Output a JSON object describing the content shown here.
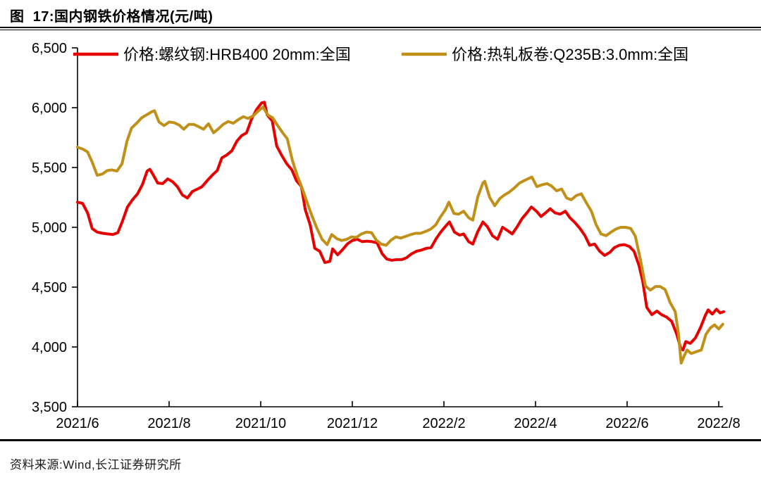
{
  "title": "图  17:国内钢铁价格情况(元/吨)",
  "source": "资料来源:Wind,长江证券研究所",
  "colors": {
    "axis": "#000000",
    "rebar": "#e60000",
    "hrc": "#c09018"
  },
  "chart_data": {
    "type": "line",
    "title": "国内钢铁价格情况",
    "unit": "元/吨",
    "grid": false,
    "legend_position": "top-inside",
    "x_axis": {
      "unit": "months since 2021/6",
      "range": [
        0,
        14.15
      ],
      "tick_positions": [
        0,
        2,
        4,
        6,
        8,
        10,
        12,
        14
      ],
      "tick_labels": [
        "2021/6",
        "2021/8",
        "2021/10",
        "2021/12",
        "2022/2",
        "2022/4",
        "2022/6",
        "2022/8"
      ]
    },
    "y_axis": {
      "range": [
        3500,
        6500
      ],
      "tick_values": [
        6500,
        6000,
        5500,
        5000,
        4500,
        4000,
        3500
      ],
      "tick_labels": [
        "6,500",
        "6,000",
        "5,500",
        "5,000",
        "4,500",
        "4,000",
        "3,500"
      ]
    },
    "series": [
      {
        "name": "价格:螺纹钢:HRB400 20mm:全国",
        "color": "#e60000",
        "points": [
          [
            0,
            5210
          ],
          [
            0.11,
            5200
          ],
          [
            0.22,
            5120
          ],
          [
            0.32,
            4990
          ],
          [
            0.43,
            4960
          ],
          [
            0.55,
            4950
          ],
          [
            0.66,
            4945
          ],
          [
            0.77,
            4940
          ],
          [
            0.88,
            4955
          ],
          [
            0.98,
            5050
          ],
          [
            1.09,
            5170
          ],
          [
            1.2,
            5230
          ],
          [
            1.31,
            5280
          ],
          [
            1.42,
            5360
          ],
          [
            1.52,
            5470
          ],
          [
            1.58,
            5485
          ],
          [
            1.65,
            5440
          ],
          [
            1.75,
            5370
          ],
          [
            1.86,
            5365
          ],
          [
            1.97,
            5405
          ],
          [
            2.08,
            5380
          ],
          [
            2.18,
            5340
          ],
          [
            2.29,
            5270
          ],
          [
            2.4,
            5245
          ],
          [
            2.51,
            5300
          ],
          [
            2.62,
            5320
          ],
          [
            2.72,
            5340
          ],
          [
            2.83,
            5390
          ],
          [
            2.94,
            5435
          ],
          [
            3.05,
            5475
          ],
          [
            3.15,
            5580
          ],
          [
            3.26,
            5605
          ],
          [
            3.37,
            5640
          ],
          [
            3.48,
            5720
          ],
          [
            3.58,
            5765
          ],
          [
            3.69,
            5790
          ],
          [
            3.8,
            5905
          ],
          [
            3.91,
            5985
          ],
          [
            4.02,
            6040
          ],
          [
            4.08,
            6045
          ],
          [
            4.14,
            5940
          ],
          [
            4.25,
            5890
          ],
          [
            4.35,
            5680
          ],
          [
            4.46,
            5600
          ],
          [
            4.57,
            5530
          ],
          [
            4.68,
            5480
          ],
          [
            4.78,
            5390
          ],
          [
            4.89,
            5340
          ],
          [
            4.97,
            5150
          ],
          [
            5.08,
            5020
          ],
          [
            5.18,
            4825
          ],
          [
            5.29,
            4800
          ],
          [
            5.4,
            4705
          ],
          [
            5.51,
            4715
          ],
          [
            5.57,
            4820
          ],
          [
            5.68,
            4770
          ],
          [
            5.78,
            4810
          ],
          [
            5.89,
            4860
          ],
          [
            6,
            4890
          ],
          [
            6.11,
            4900
          ],
          [
            6.22,
            4880
          ],
          [
            6.32,
            4885
          ],
          [
            6.43,
            4880
          ],
          [
            6.54,
            4870
          ],
          [
            6.65,
            4780
          ],
          [
            6.75,
            4735
          ],
          [
            6.86,
            4725
          ],
          [
            6.97,
            4730
          ],
          [
            7.08,
            4730
          ],
          [
            7.18,
            4745
          ],
          [
            7.28,
            4775
          ],
          [
            7.4,
            4800
          ],
          [
            7.51,
            4810
          ],
          [
            7.62,
            4825
          ],
          [
            7.72,
            4830
          ],
          [
            7.83,
            4905
          ],
          [
            7.94,
            4965
          ],
          [
            8.05,
            5015
          ],
          [
            8.12,
            5045
          ],
          [
            8.23,
            4960
          ],
          [
            8.34,
            4935
          ],
          [
            8.43,
            4945
          ],
          [
            8.54,
            4880
          ],
          [
            8.63,
            4860
          ],
          [
            8.74,
            4965
          ],
          [
            8.85,
            5045
          ],
          [
            8.95,
            5005
          ],
          [
            9.06,
            4930
          ],
          [
            9.17,
            4900
          ],
          [
            9.28,
            5000
          ],
          [
            9.38,
            4975
          ],
          [
            9.49,
            4945
          ],
          [
            9.6,
            5005
          ],
          [
            9.71,
            5075
          ],
          [
            9.82,
            5125
          ],
          [
            9.91,
            5170
          ],
          [
            10.02,
            5135
          ],
          [
            10.12,
            5090
          ],
          [
            10.23,
            5125
          ],
          [
            10.32,
            5155
          ],
          [
            10.43,
            5120
          ],
          [
            10.54,
            5110
          ],
          [
            10.65,
            5135
          ],
          [
            10.75,
            5080
          ],
          [
            10.86,
            5040
          ],
          [
            10.97,
            4990
          ],
          [
            11.08,
            4930
          ],
          [
            11.18,
            4850
          ],
          [
            11.29,
            4860
          ],
          [
            11.4,
            4800
          ],
          [
            11.51,
            4765
          ],
          [
            11.62,
            4790
          ],
          [
            11.72,
            4830
          ],
          [
            11.83,
            4850
          ],
          [
            11.94,
            4855
          ],
          [
            12.05,
            4840
          ],
          [
            12.15,
            4800
          ],
          [
            12.26,
            4680
          ],
          [
            12.34,
            4550
          ],
          [
            12.43,
            4330
          ],
          [
            12.54,
            4270
          ],
          [
            12.65,
            4300
          ],
          [
            12.75,
            4270
          ],
          [
            12.86,
            4250
          ],
          [
            12.97,
            4215
          ],
          [
            13.08,
            4110
          ],
          [
            13.17,
            3990
          ],
          [
            13.22,
            3975
          ],
          [
            13.28,
            4045
          ],
          [
            13.38,
            4030
          ],
          [
            13.49,
            4075
          ],
          [
            13.6,
            4160
          ],
          [
            13.71,
            4265
          ],
          [
            13.77,
            4310
          ],
          [
            13.86,
            4275
          ],
          [
            13.95,
            4315
          ],
          [
            14.03,
            4285
          ],
          [
            14.11,
            4295
          ]
        ]
      },
      {
        "name": "价格:热轧板卷:Q235B:3.0mm:全国",
        "color": "#c09018",
        "points": [
          [
            0,
            5670
          ],
          [
            0.11,
            5655
          ],
          [
            0.22,
            5630
          ],
          [
            0.32,
            5545
          ],
          [
            0.43,
            5435
          ],
          [
            0.54,
            5445
          ],
          [
            0.65,
            5475
          ],
          [
            0.75,
            5480
          ],
          [
            0.86,
            5470
          ],
          [
            0.97,
            5530
          ],
          [
            1.08,
            5720
          ],
          [
            1.18,
            5830
          ],
          [
            1.29,
            5870
          ],
          [
            1.4,
            5915
          ],
          [
            1.51,
            5940
          ],
          [
            1.62,
            5965
          ],
          [
            1.68,
            5975
          ],
          [
            1.78,
            5880
          ],
          [
            1.89,
            5850
          ],
          [
            2,
            5880
          ],
          [
            2.11,
            5875
          ],
          [
            2.22,
            5855
          ],
          [
            2.32,
            5820
          ],
          [
            2.43,
            5860
          ],
          [
            2.54,
            5860
          ],
          [
            2.65,
            5840
          ],
          [
            2.75,
            5820
          ],
          [
            2.86,
            5865
          ],
          [
            2.97,
            5790
          ],
          [
            3.08,
            5825
          ],
          [
            3.18,
            5860
          ],
          [
            3.29,
            5885
          ],
          [
            3.4,
            5870
          ],
          [
            3.51,
            5900
          ],
          [
            3.62,
            5925
          ],
          [
            3.72,
            5910
          ],
          [
            3.83,
            5930
          ],
          [
            3.94,
            5970
          ],
          [
            4.05,
            6005
          ],
          [
            4.15,
            5940
          ],
          [
            4.26,
            5915
          ],
          [
            4.37,
            5850
          ],
          [
            4.48,
            5790
          ],
          [
            4.58,
            5740
          ],
          [
            4.69,
            5560
          ],
          [
            4.8,
            5430
          ],
          [
            4.91,
            5320
          ],
          [
            5.02,
            5200
          ],
          [
            5.12,
            5095
          ],
          [
            5.23,
            4990
          ],
          [
            5.34,
            4900
          ],
          [
            5.45,
            4855
          ],
          [
            5.55,
            4940
          ],
          [
            5.66,
            4905
          ],
          [
            5.77,
            4890
          ],
          [
            5.88,
            4900
          ],
          [
            5.98,
            4920
          ],
          [
            6.09,
            4915
          ],
          [
            6.2,
            4945
          ],
          [
            6.31,
            4960
          ],
          [
            6.42,
            4955
          ],
          [
            6.52,
            4895
          ],
          [
            6.63,
            4860
          ],
          [
            6.74,
            4850
          ],
          [
            6.85,
            4895
          ],
          [
            6.95,
            4920
          ],
          [
            7.06,
            4910
          ],
          [
            7.17,
            4925
          ],
          [
            7.28,
            4940
          ],
          [
            7.38,
            4950
          ],
          [
            7.49,
            4950
          ],
          [
            7.6,
            4965
          ],
          [
            7.71,
            4985
          ],
          [
            7.82,
            5020
          ],
          [
            7.92,
            5085
          ],
          [
            8.03,
            5145
          ],
          [
            8.11,
            5210
          ],
          [
            8.22,
            5115
          ],
          [
            8.32,
            5110
          ],
          [
            8.43,
            5135
          ],
          [
            8.54,
            5080
          ],
          [
            8.63,
            5060
          ],
          [
            8.74,
            5255
          ],
          [
            8.85,
            5370
          ],
          [
            8.89,
            5385
          ],
          [
            9,
            5250
          ],
          [
            9.11,
            5180
          ],
          [
            9.22,
            5240
          ],
          [
            9.32,
            5270
          ],
          [
            9.43,
            5295
          ],
          [
            9.54,
            5330
          ],
          [
            9.65,
            5370
          ],
          [
            9.75,
            5390
          ],
          [
            9.86,
            5410
          ],
          [
            9.92,
            5420
          ],
          [
            10.03,
            5340
          ],
          [
            10.14,
            5355
          ],
          [
            10.25,
            5365
          ],
          [
            10.35,
            5345
          ],
          [
            10.46,
            5305
          ],
          [
            10.57,
            5320
          ],
          [
            10.68,
            5245
          ],
          [
            10.78,
            5230
          ],
          [
            10.89,
            5265
          ],
          [
            11,
            5280
          ],
          [
            11.11,
            5205
          ],
          [
            11.22,
            5135
          ],
          [
            11.32,
            5025
          ],
          [
            11.43,
            4945
          ],
          [
            11.54,
            4930
          ],
          [
            11.65,
            4960
          ],
          [
            11.75,
            4985
          ],
          [
            11.86,
            5000
          ],
          [
            11.97,
            5000
          ],
          [
            12.08,
            4990
          ],
          [
            12.18,
            4925
          ],
          [
            12.29,
            4730
          ],
          [
            12.4,
            4510
          ],
          [
            12.51,
            4475
          ],
          [
            12.62,
            4505
          ],
          [
            12.72,
            4505
          ],
          [
            12.83,
            4480
          ],
          [
            12.94,
            4370
          ],
          [
            13.05,
            4295
          ],
          [
            13.12,
            4115
          ],
          [
            13.18,
            3865
          ],
          [
            13.25,
            3930
          ],
          [
            13.31,
            3975
          ],
          [
            13.4,
            3945
          ],
          [
            13.51,
            3960
          ],
          [
            13.62,
            3975
          ],
          [
            13.72,
            4105
          ],
          [
            13.82,
            4160
          ],
          [
            13.91,
            4185
          ],
          [
            14,
            4150
          ],
          [
            14.09,
            4190
          ]
        ]
      }
    ]
  }
}
